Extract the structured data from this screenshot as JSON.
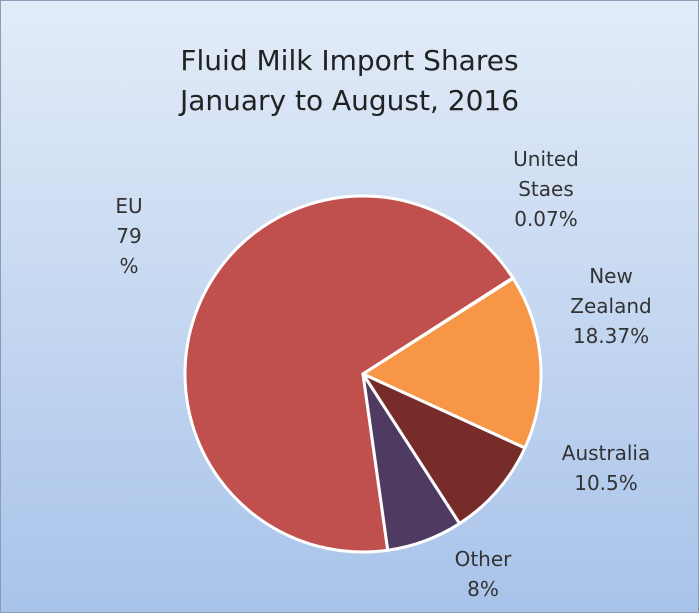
{
  "chart_data": {
    "type": "pie",
    "title": "Fluid Milk Import Shares",
    "subtitle": "January to August, 2016",
    "categories": [
      "EU",
      "United Staes",
      "New Zealand",
      "Australia",
      "Other"
    ],
    "values": [
      79,
      0.07,
      18.37,
      10.5,
      8
    ],
    "value_labels": [
      "79 %",
      "0.07%",
      "18.37%",
      "10.5%",
      "8%"
    ],
    "colors": [
      "#c0504d",
      "#8064a2",
      "#f79646",
      "#772c2a",
      "#4f3b62"
    ]
  }
}
